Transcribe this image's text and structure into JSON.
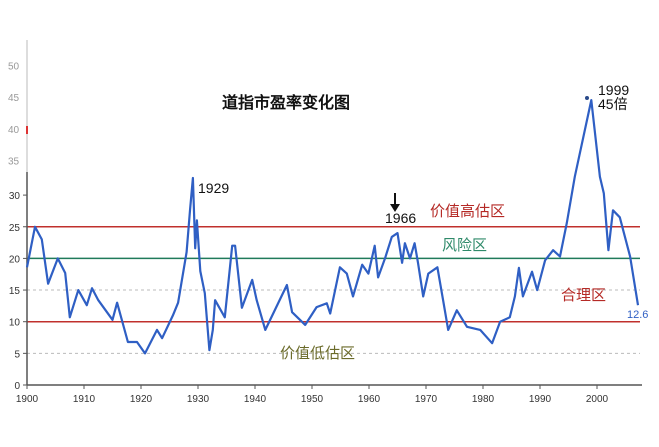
{
  "chart_data": {
    "type": "line",
    "title": "道指市盈率变化图",
    "xlabel": "",
    "ylabel": "",
    "xlim": [
      1900,
      2008
    ],
    "ylim": [
      0,
      50
    ],
    "x_ticks": [
      "1900",
      "1910",
      "1920",
      "1930",
      "1940",
      "1950",
      "1960",
      "1970",
      "1980",
      "1990",
      "2000"
    ],
    "y_ticks_lower": [
      "0",
      "5",
      "10",
      "15",
      "20",
      "25",
      "30"
    ],
    "y_ticks_upper": [
      "35",
      "40",
      "45",
      "50"
    ],
    "grid": false,
    "line_color": "#2f5fc4",
    "reference_lines": [
      {
        "value": 25,
        "color": "#c0302c",
        "style": "solid"
      },
      {
        "value": 20,
        "color": "#1f7a5a",
        "style": "solid"
      },
      {
        "value": 10,
        "color": "#c0302c",
        "style": "solid"
      },
      {
        "value": 15,
        "color": "#bbbbbb",
        "style": "dashed"
      },
      {
        "value": 5,
        "color": "#bbbbbb",
        "style": "dashed"
      }
    ],
    "series": [
      {
        "x": [
          1900,
          1901.4,
          1902.6,
          1903.7,
          1905.4,
          1906.7,
          1907.5,
          1909,
          1910.5,
          1911.4,
          1912.5,
          1915,
          1915.8,
          1917.7,
          1919.3,
          1920.7,
          1922.8,
          1923.7,
          1925.6,
          1926.5,
          1928,
          1928.6,
          1929.1,
          1929.5,
          1929.8,
          1930.4,
          1931.2,
          1932,
          1932.6,
          1933,
          1934.7,
          1936,
          1936.5,
          1937.7,
          1939.5,
          1940.3,
          1941.8,
          1943.2,
          1945.6,
          1946.5,
          1948.8,
          1950.8,
          1952.6,
          1953.2,
          1954.9,
          1956.1,
          1957.2,
          1958.8,
          1959.9,
          1961,
          1961.6,
          1962.8,
          1964,
          1965,
          1965.8,
          1966.3,
          1967.2,
          1968,
          1968.6,
          1969.5,
          1970.4,
          1972,
          1973,
          1973.9,
          1975.4,
          1977.2,
          1979.5,
          1981.6,
          1983,
          1984.7,
          1985.6,
          1986.3,
          1987,
          1988.6,
          1989.5,
          1990.9,
          1992.3,
          1993.5,
          1994.7,
          1996.1,
          1999,
          2000.5,
          2001.2,
          2002,
          2002.8,
          2004,
          2005.8,
          2007.2
        ],
        "values": [
          18.6,
          25,
          23,
          16,
          20,
          17.7,
          10.7,
          15,
          12.6,
          15.3,
          13.4,
          10.3,
          13,
          6.8,
          6.8,
          5,
          8.7,
          7.4,
          11,
          13,
          21,
          27.6,
          32.7,
          21.6,
          26,
          18,
          14.5,
          5.5,
          8.7,
          13.4,
          10.7,
          22,
          22,
          12.2,
          16.6,
          13.4,
          8.7,
          11.3,
          15.8,
          11.5,
          9.5,
          12.3,
          12.9,
          11.3,
          18.6,
          17.6,
          14,
          19,
          17.6,
          22,
          17,
          20,
          23.4,
          24,
          19.3,
          22.4,
          20,
          22.4,
          19.3,
          14,
          17.6,
          18.6,
          13.4,
          8.7,
          11.8,
          9.2,
          8.7,
          6.6,
          10,
          10.7,
          14,
          18.5,
          14,
          17.9,
          15,
          19.7,
          21.3,
          20.3,
          25.6,
          32.9,
          45,
          32.9,
          30.3,
          21.3,
          27.6,
          26.5,
          20.3,
          12.6
        ]
      }
    ],
    "annotations": {
      "peak_1929": "1929",
      "mark_1966": "1966",
      "peak_1999_year": "1999",
      "peak_1999_value": "45倍",
      "latest_value": "12.6",
      "zone_overvalued": "价值高估区",
      "zone_risk": "风险区",
      "zone_fair": "合理区",
      "zone_undervalued": "价值低估区"
    }
  }
}
